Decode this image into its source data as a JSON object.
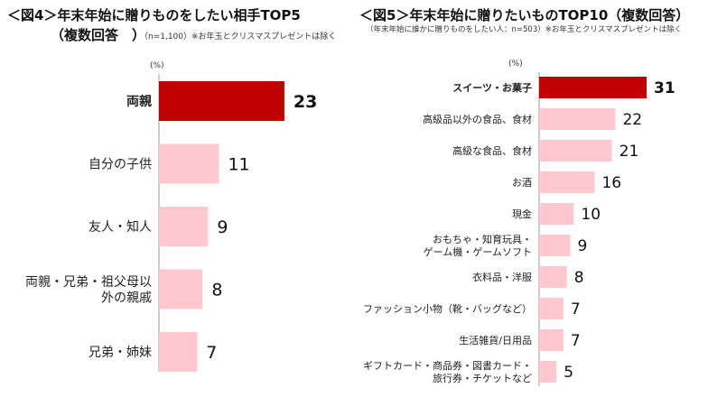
{
  "chart_data": [
    {
      "type": "bar",
      "orientation": "horizontal",
      "title": "＜図4＞年末年始に贈りものをしたい相手TOP5",
      "title_line2": "（複数回答　）",
      "note": "（n=1,100）※お年玉とクリスマスプレゼントは除く",
      "unit": "(%)",
      "categories": [
        "両親",
        "自分の子供",
        "友人・知人",
        "両親・兄弟・祖父母以\n外の親戚",
        "兄弟・姉妹"
      ],
      "values": [
        23,
        11,
        9,
        8,
        7
      ],
      "highlight_index": 0,
      "xlim": [
        0,
        25
      ]
    },
    {
      "type": "bar",
      "orientation": "horizontal",
      "title": "＜図5＞年末年始に贈りたいものTOP10（複数回答）",
      "note": "（年末年始に誰かに贈りものをしたい人：n=503）※お年玉とクリスマスプレゼントは除く",
      "unit": "(%)",
      "categories": [
        "スイーツ・お菓子",
        "高級品以外の食品、食材",
        "高級な食品、食材",
        "お酒",
        "現金",
        "おもちゃ・知育玩具・\nゲーム機・ゲームソフト",
        "衣料品・洋服",
        "ファッション小物（靴・バッグなど）",
        "生活雑貨/日用品",
        "ギフトカード・商品券・図書カード・\n旅行券・チケットなど"
      ],
      "values": [
        31,
        22,
        21,
        16,
        10,
        9,
        8,
        7,
        7,
        5
      ],
      "highlight_index": 0,
      "xlim": [
        0,
        33
      ]
    }
  ],
  "colors": {
    "highlight": "#c00000",
    "normal": "#ffc7ce",
    "axis": "#999999"
  }
}
